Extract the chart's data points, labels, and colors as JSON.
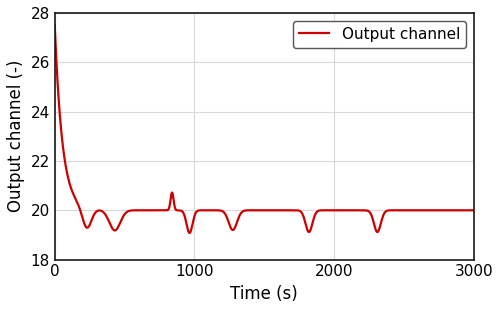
{
  "title": "",
  "xlabel": "Time (s)",
  "ylabel": "Output channel (-)",
  "xlim": [
    0,
    3000
  ],
  "ylim": [
    18,
    28
  ],
  "yticks": [
    18,
    20,
    22,
    24,
    26,
    28
  ],
  "xticks": [
    0,
    1000,
    2000,
    3000
  ],
  "grid_color": "#d8d8d8",
  "line_color": "#cc0000",
  "line_width": 1.6,
  "legend_label": "Output channel",
  "background_color": "#ffffff",
  "axes_background": "#ffffff",
  "xlabel_fontsize": 12,
  "ylabel_fontsize": 12,
  "tick_fontsize": 11,
  "legend_fontsize": 11,
  "decay_start": 27.5,
  "decay_tau": 55,
  "setpoint": 20.0
}
